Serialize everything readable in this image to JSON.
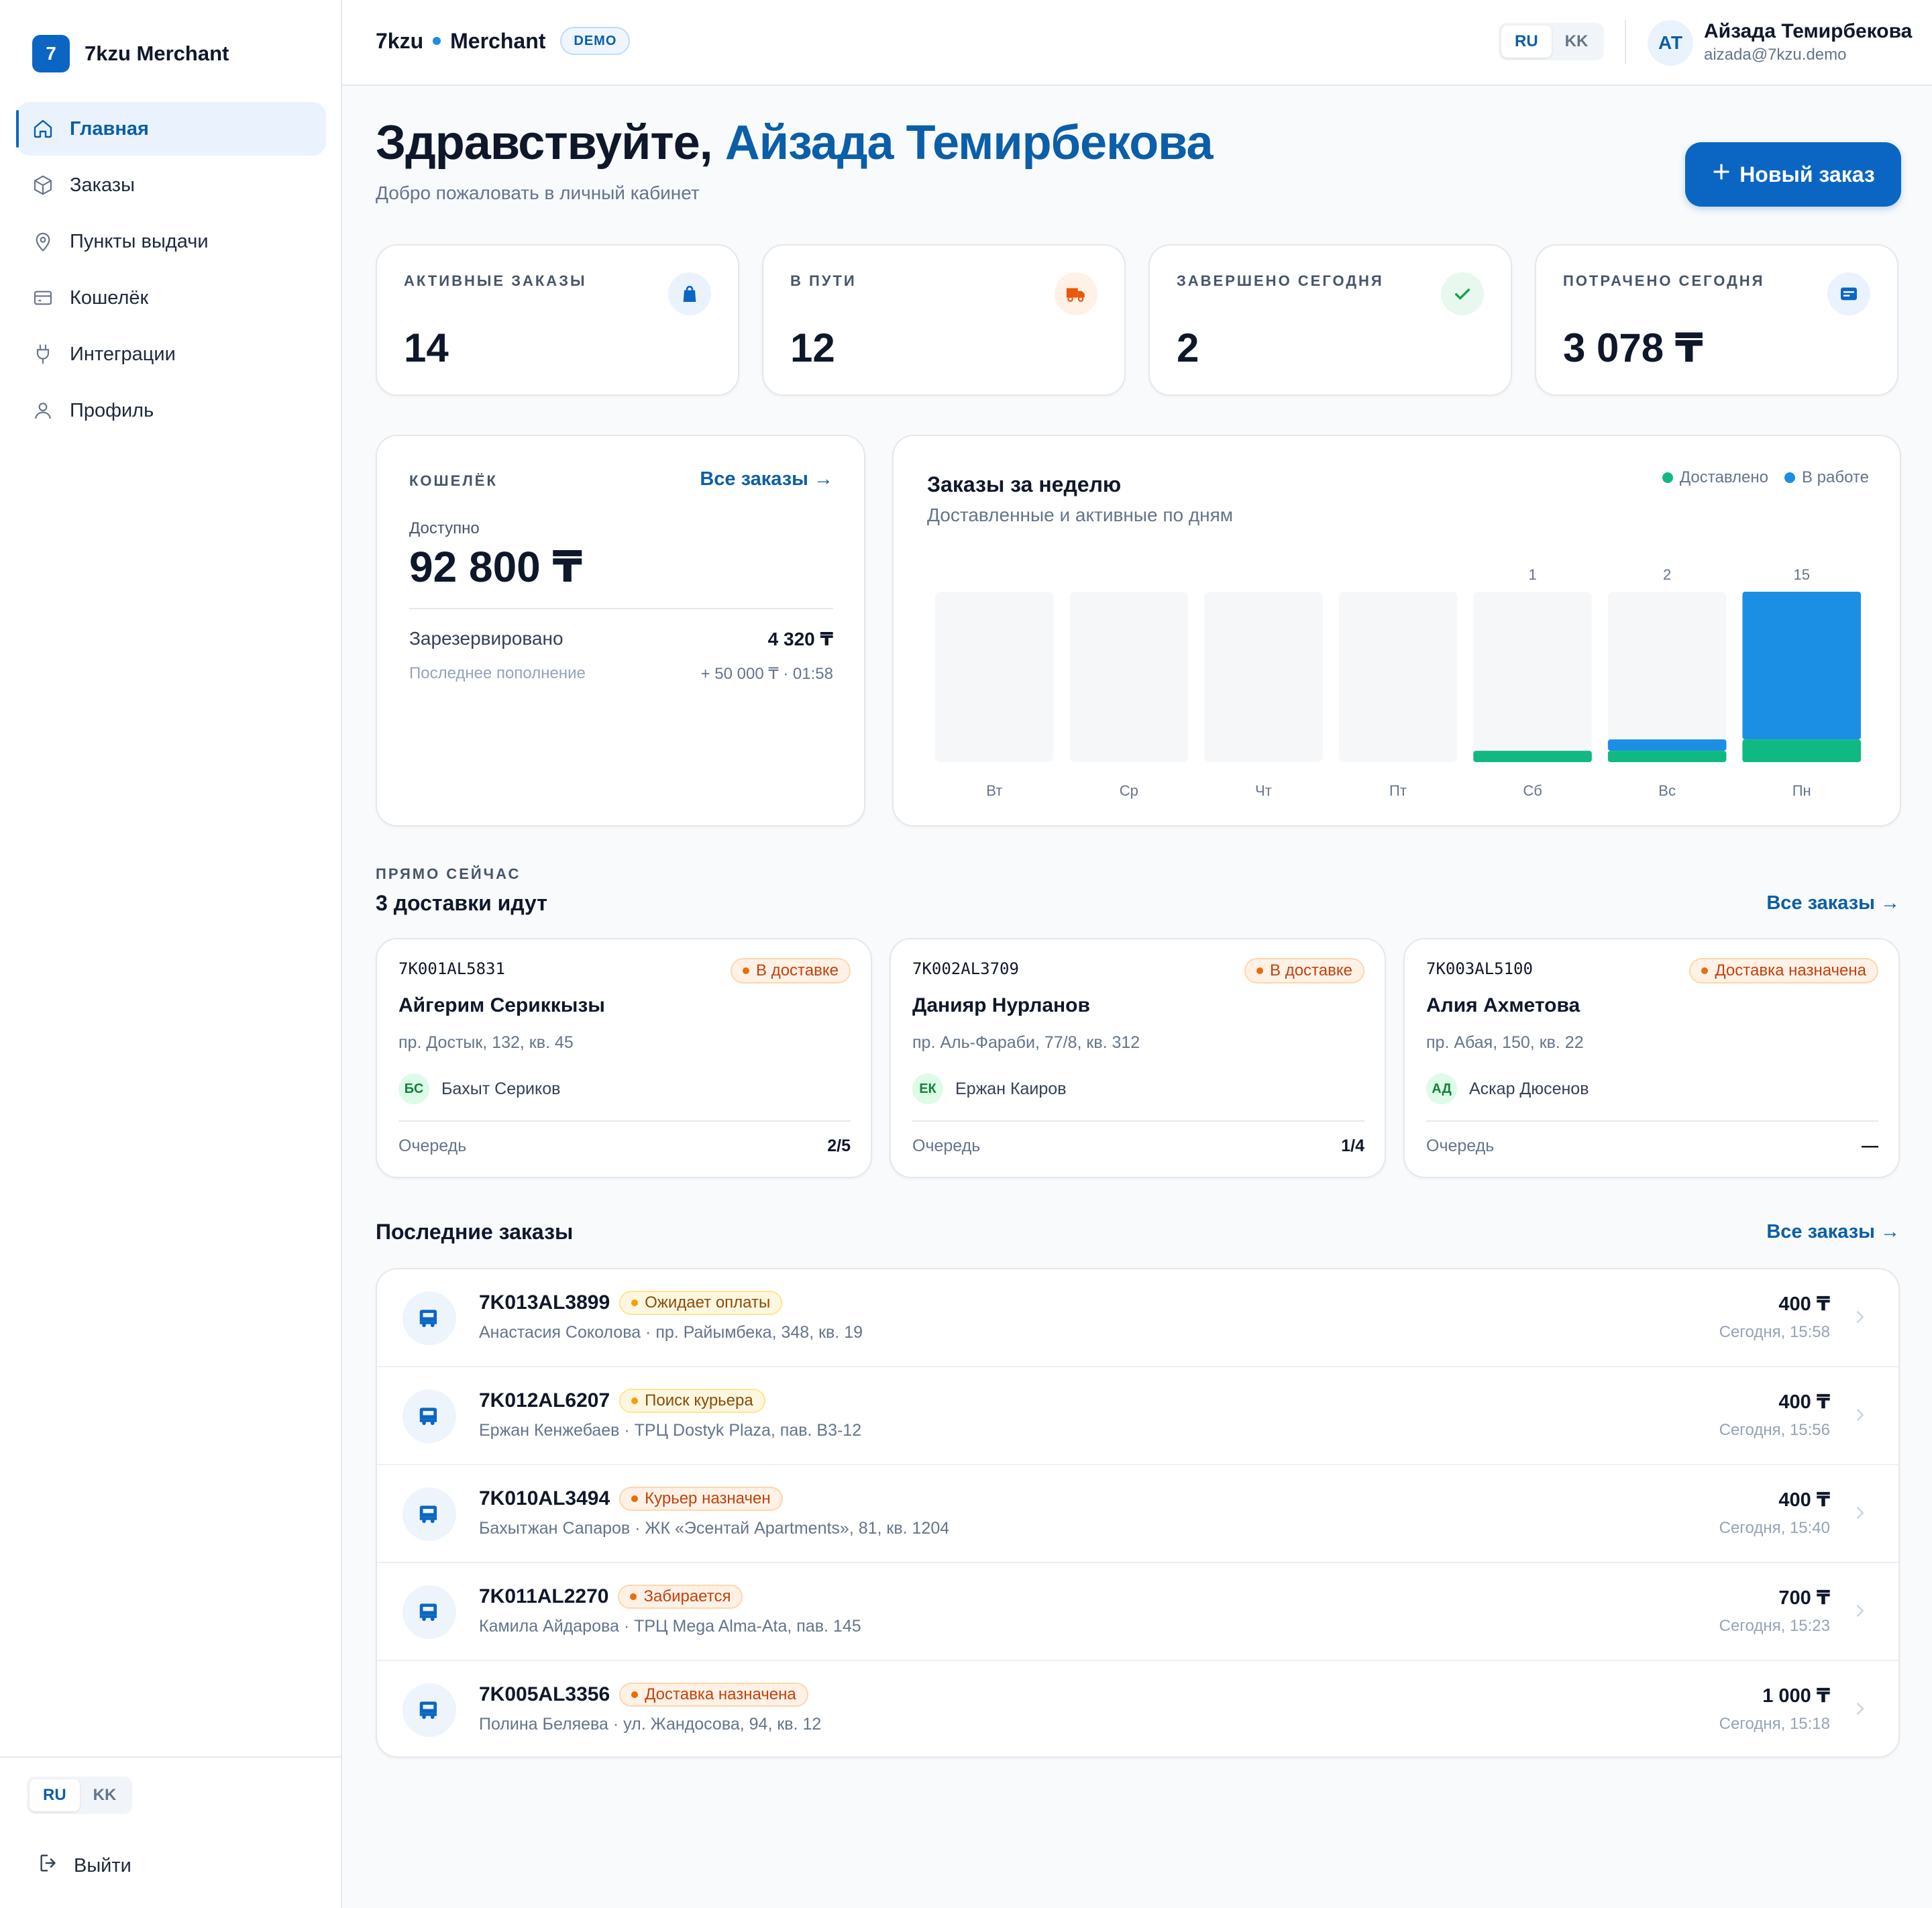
{
  "brand": {
    "logo_letter": "7",
    "name": "7kzu Merchant"
  },
  "sidebar": {
    "items": [
      {
        "label": "Главная",
        "icon": "home-icon",
        "active": true
      },
      {
        "label": "Заказы",
        "icon": "box-icon"
      },
      {
        "label": "Пункты выдачи",
        "icon": "map-pin-icon"
      },
      {
        "label": "Кошелёк",
        "icon": "wallet-icon"
      },
      {
        "label": "Интеграции",
        "icon": "plug-icon"
      },
      {
        "label": "Профиль",
        "icon": "user-icon"
      }
    ],
    "lang": [
      "RU",
      "KK"
    ],
    "lang_active": "RU",
    "logout_label": "Выйти"
  },
  "topbar": {
    "brand_left": "7kzu",
    "brand_right": "Merchant",
    "badge": "DEMO",
    "lang": [
      "RU",
      "KK"
    ],
    "avatar_initials": "АТ",
    "user_name": "Айзада Темирбекова",
    "user_email": "aizada@7kzu.demo"
  },
  "greeting": {
    "prefix": "Здравствуйте,",
    "name": "Айзада Темирбекова",
    "subtitle": "Добро пожаловать в личный кабинет",
    "new_order_label": "Новый заказ"
  },
  "stats": [
    {
      "label": "АКТИВНЫЕ ЗАКАЗЫ",
      "value": "14",
      "icon": "shopping-bag-icon",
      "color": "#0b66c3",
      "bg": "#eaf3fd"
    },
    {
      "label": "В ПУТИ",
      "value": "12",
      "icon": "truck-icon",
      "color": "#ea580c",
      "bg": "#fff1e6"
    },
    {
      "label": "ЗАВЕРШЕНО СЕГОДНЯ",
      "value": "2",
      "icon": "check-icon",
      "color": "#16a34a",
      "bg": "#e8f8ee"
    },
    {
      "label": "ПОТРАЧЕНО СЕГОДНЯ",
      "value": "3 078 ₸",
      "icon": "card-icon",
      "color": "#0b66c3",
      "bg": "#eaf3fd"
    }
  ],
  "wallet": {
    "label": "КОШЕЛЁК",
    "link": "Все заказы →",
    "available_label": "Доступно",
    "available": "92 800 ₸",
    "reserved_label": "Зарезервировано",
    "reserved": "4 320 ₸",
    "last_topup_label": "Последнее пополнение",
    "last_topup": "+ 50 000 ₸ · 01:58"
  },
  "chart_panel": {
    "title": "Заказы за неделю",
    "subtitle": "Доставленные и активные по дням"
  },
  "chart_data": {
    "type": "bar",
    "stacked": true,
    "categories": [
      "Вт",
      "Ср",
      "Чт",
      "Пт",
      "Сб",
      "Вс",
      "Пн"
    ],
    "totals": [
      0,
      0,
      0,
      0,
      1,
      2,
      15
    ],
    "total_labels": [
      "",
      "",
      "",
      "",
      "1",
      "2",
      "15"
    ],
    "series": [
      {
        "name": "Доставлено",
        "color": "#10b981",
        "values": [
          0,
          0,
          0,
          0,
          1,
          1,
          2
        ]
      },
      {
        "name": "В работе",
        "color": "#1a8fe3",
        "values": [
          0,
          0,
          0,
          0,
          0,
          1,
          13
        ]
      }
    ],
    "ylim": [
      0,
      15
    ],
    "legend": "top-right",
    "grid": false
  },
  "now": {
    "eyebrow": "ПРЯМО СЕЙЧАС",
    "title": "3 доставки идут",
    "link": "Все заказы →",
    "queue_label": "Очередь",
    "cards": [
      {
        "code": "7K001AL5831",
        "status": "В доставке",
        "name": "Айгерим Сериккызы",
        "address": "пр. Достык, 132, кв. 45",
        "courier_initials": "БС",
        "courier": "Бахыт Сериков",
        "queue": "2/5"
      },
      {
        "code": "7K002AL3709",
        "status": "В доставке",
        "name": "Данияр Нурланов",
        "address": "пр. Аль-Фараби, 77/8, кв. 312",
        "courier_initials": "ЕК",
        "courier": "Ержан Каиров",
        "queue": "1/4"
      },
      {
        "code": "7K003AL5100",
        "status": "Доставка назначена",
        "name": "Алия Ахметова",
        "address": "пр. Абая, 150, кв. 22",
        "courier_initials": "АД",
        "courier": "Аскар Дюсенов",
        "queue": "—"
      }
    ]
  },
  "recent": {
    "title": "Последние заказы",
    "link": "Все заказы →",
    "rows": [
      {
        "code": "7K013AL3899",
        "status": "Ожидает оплаты",
        "tone": "yellow",
        "sub": "Анастасия Соколова · пр. Райымбека, 348, кв. 19",
        "amount": "400 ₸",
        "time": "Сегодня, 15:58"
      },
      {
        "code": "7K012AL6207",
        "status": "Поиск курьера",
        "tone": "yellow",
        "sub": "Ержан Кенжебаев · ТРЦ Dostyk Plaza, пав. B3-12",
        "amount": "400 ₸",
        "time": "Сегодня, 15:56"
      },
      {
        "code": "7K010AL3494",
        "status": "Курьер назначен",
        "tone": "orange",
        "sub": "Бахытжан Сапаров · ЖК «Эсентай Apartments», 81, кв. 1204",
        "amount": "400 ₸",
        "time": "Сегодня, 15:40"
      },
      {
        "code": "7K011AL2270",
        "status": "Забирается",
        "tone": "orange",
        "sub": "Камила Айдарова · ТРЦ Mega Alma-Ata, пав. 145",
        "amount": "700 ₸",
        "time": "Сегодня, 15:23"
      },
      {
        "code": "7K005AL3356",
        "status": "Доставка назначена",
        "tone": "orange",
        "sub": "Полина Беляева · ул. Жандосова, 94, кв. 12",
        "amount": "1 000 ₸",
        "time": "Сегодня, 15:18"
      }
    ]
  }
}
